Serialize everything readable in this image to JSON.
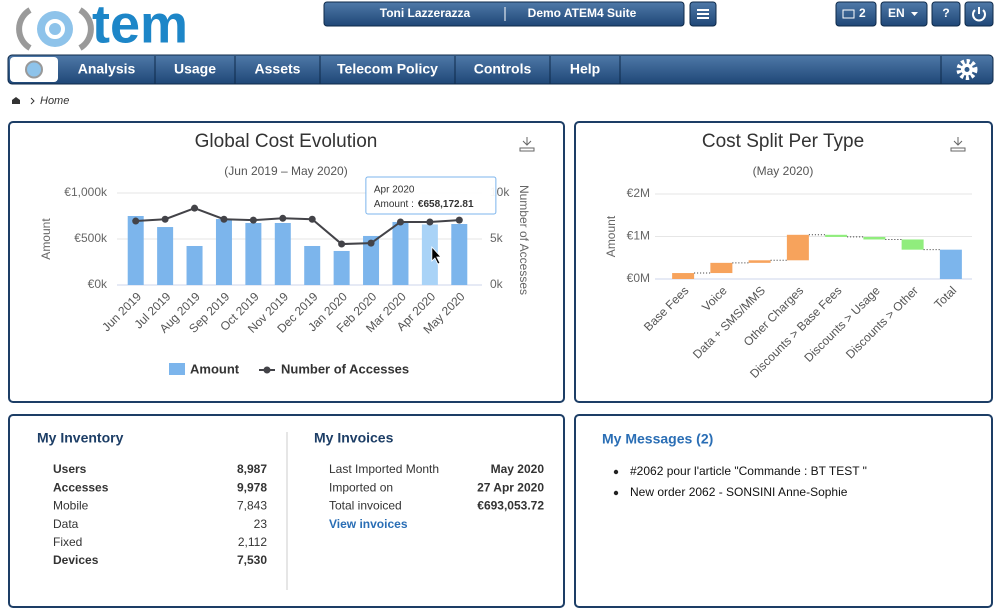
{
  "header": {
    "logo": "tem",
    "user": "Toni Lazzerazza",
    "suite": "Demo ATEM4 Suite",
    "messages_count": "2",
    "language": "EN",
    "help": "?"
  },
  "nav": [
    "Analysis",
    "Usage",
    "Assets",
    "Telecom Policy",
    "Controls",
    "Help"
  ],
  "breadcrumb": "Home",
  "chart_data": [
    {
      "type": "bar_line",
      "title": "Global Cost Evolution",
      "subtitle": "(Jun 2019 – May 2020)",
      "y_label": "Amount",
      "y2_label": "Number of Accesses",
      "categories": [
        "Jun 2019",
        "Jul 2019",
        "Aug 2019",
        "Sep 2019",
        "Oct 2019",
        "Nov 2019",
        "Dec 2019",
        "Jan 2020",
        "Feb 2020",
        "Mar 2020",
        "Apr 2020",
        "May 2020"
      ],
      "series": [
        {
          "name": "Amount",
          "type": "bar",
          "color": "#7cb5ec",
          "hover_color": "#a9d3f7",
          "values": [
            750000,
            630000,
            424000,
            717000,
            674000,
            674000,
            424000,
            370000,
            533000,
            685000,
            658172.81,
            663000
          ],
          "value_labels": [
            null,
            null,
            null,
            null,
            null,
            null,
            null,
            null,
            null,
            null,
            "€658,172.81",
            null
          ]
        },
        {
          "name": "Number of Accesses",
          "type": "line",
          "axis": "y2",
          "color": "#434348",
          "values": [
            6950,
            7150,
            8350,
            7150,
            7050,
            7250,
            7150,
            4450,
            4550,
            6850,
            6850,
            7050
          ]
        }
      ],
      "tooltip_label": "Amount :",
      "ylim": [
        0,
        1000000
      ],
      "yticks": [
        {
          "value": 0,
          "label": "€0k"
        },
        {
          "value": 500000,
          "label": "€500k"
        },
        {
          "value": 1000000,
          "label": "€1,000k"
        }
      ],
      "y2lim": [
        0,
        10000
      ],
      "y2ticks": [
        {
          "value": 0,
          "label": "0k"
        },
        {
          "value": 5000,
          "label": "5k"
        },
        {
          "value": 10000,
          "label": "10k"
        }
      ],
      "grid": true
    },
    {
      "type": "waterfall",
      "title": "Cost Split Per Type",
      "subtitle": "(May 2020)",
      "y_label": "Amount",
      "categories": [
        "Base Fees",
        "Voice",
        "Data + SMS/MMS",
        "Other Charges",
        "Discounts > Base Fees",
        "Discounts > Usage",
        "Discounts > Other",
        "Total"
      ],
      "values": [
        140000,
        240000,
        60000,
        600000,
        -50000,
        -60000,
        -240000,
        690000
      ],
      "up_color": "#f7a35c",
      "down_color": "#90ed7d",
      "total_color": "#7cb5ec",
      "ylim": [
        0,
        2000000
      ],
      "yticks": [
        {
          "value": 0,
          "label": "€0M"
        },
        {
          "value": 1000000,
          "label": "€1M"
        },
        {
          "value": 2000000,
          "label": "€2M"
        }
      ],
      "grid": true
    }
  ],
  "inventory": {
    "title": "My Inventory",
    "rows": [
      {
        "label": "Users",
        "value": "8,987",
        "bold": true
      },
      {
        "label": "Accesses",
        "value": "9,978",
        "bold": true
      },
      {
        "label": "Mobile",
        "value": "7,843",
        "bold": false
      },
      {
        "label": "Data",
        "value": "23",
        "bold": false
      },
      {
        "label": "Fixed",
        "value": "2,112",
        "bold": false
      },
      {
        "label": "Devices",
        "value": "7,530",
        "bold": true
      }
    ]
  },
  "invoices": {
    "title": "My Invoices",
    "rows": [
      {
        "label": "Last Imported Month",
        "value": "May 2020"
      },
      {
        "label": "Imported on",
        "value": "27 Apr 2020"
      },
      {
        "label": "Total invoiced",
        "value": "€693,053.72"
      }
    ],
    "link": "View invoices"
  },
  "messages": {
    "title": "My Messages (2)",
    "items": [
      "#2062 pour l'article \"Commande : BT TEST \"",
      "New order 2062 - SONSINI Anne-Sophie"
    ]
  }
}
